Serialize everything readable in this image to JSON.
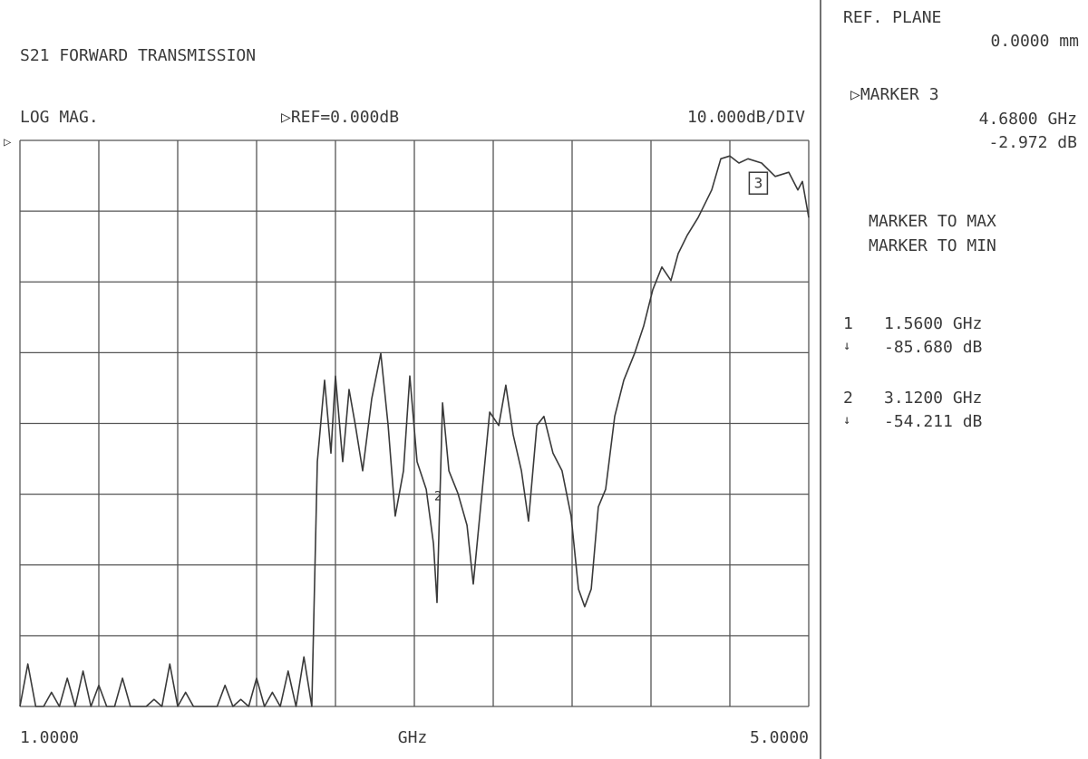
{
  "chart_data": {
    "type": "line",
    "title": "S21 FORWARD TRANSMISSION",
    "format_label": "LOG MAG.",
    "ref_label": "▷REF=0.000dB",
    "scale_label": "10.000dB/DIV",
    "xlabel": "GHz",
    "ref_marker": "▷",
    "xlim": [
      1,
      5
    ],
    "ylim": [
      -80,
      0
    ],
    "xticks": [
      {
        "value": 1,
        "label": "1.0000"
      },
      {
        "value": 5,
        "label": "5.0000"
      }
    ],
    "xgrid": [
      1,
      1.4,
      1.8,
      2.2,
      2.6,
      3.0,
      3.4,
      3.8,
      4.2,
      4.6,
      5.0
    ],
    "ygrid": [
      0,
      -10,
      -20,
      -30,
      -40,
      -50,
      -60,
      -70,
      -80
    ],
    "grid": true,
    "x": [
      1.0,
      1.04,
      1.08,
      1.12,
      1.16,
      1.2,
      1.24,
      1.28,
      1.32,
      1.36,
      1.4,
      1.44,
      1.48,
      1.52,
      1.56,
      1.6,
      1.64,
      1.68,
      1.72,
      1.76,
      1.8,
      1.84,
      1.88,
      1.92,
      1.96,
      2.0,
      2.04,
      2.08,
      2.12,
      2.16,
      2.2,
      2.24,
      2.28,
      2.32,
      2.36,
      2.4,
      2.44,
      2.48,
      2.508,
      2.545,
      2.577,
      2.6,
      2.637,
      2.669,
      2.701,
      2.738,
      2.784,
      2.83,
      2.867,
      2.903,
      2.945,
      2.977,
      3.014,
      3.06,
      3.097,
      3.115,
      3.143,
      3.175,
      3.221,
      3.267,
      3.299,
      3.336,
      3.382,
      3.428,
      3.464,
      3.501,
      3.543,
      3.579,
      3.621,
      3.657,
      3.703,
      3.749,
      3.795,
      3.832,
      3.864,
      3.897,
      3.933,
      3.97,
      4.016,
      4.062,
      4.117,
      4.163,
      4.209,
      4.255,
      4.301,
      4.338,
      4.384,
      4.439,
      4.508,
      4.554,
      4.6,
      4.646,
      4.692,
      4.761,
      4.83,
      4.899,
      4.945,
      4.968,
      5.0
    ],
    "series": [
      {
        "name": "S21",
        "color": "#3a3a3a",
        "values": [
          -80,
          -74,
          -80,
          -80,
          -78,
          -80,
          -76,
          -80,
          -75,
          -80,
          -77,
          -80,
          -80,
          -76,
          -80,
          -80,
          -80,
          -79,
          -80,
          -74,
          -80,
          -78,
          -80,
          -80,
          -80,
          -80,
          -77,
          -80,
          -79,
          -80,
          -76,
          -80,
          -78,
          -80,
          -75,
          -80,
          -73,
          -80,
          -45.4,
          -33.9,
          -44.2,
          -33.3,
          -45.4,
          -35.2,
          -40.3,
          -46.7,
          -36.5,
          -30.1,
          -40.3,
          -53.1,
          -46.7,
          -33.3,
          -45.4,
          -49.3,
          -57.0,
          -65.3,
          -37.1,
          -46.7,
          -49.9,
          -54.4,
          -62.7,
          -51.8,
          -38.4,
          -40.3,
          -34.6,
          -41.6,
          -46.7,
          -53.8,
          -40.3,
          -39.0,
          -44.2,
          -46.7,
          -53.1,
          -63.4,
          -65.9,
          -63.4,
          -51.8,
          -49.3,
          -39.0,
          -33.9,
          -30.1,
          -26.2,
          -21.1,
          -17.9,
          -19.8,
          -16.0,
          -13.4,
          -10.9,
          -7.0,
          -2.6,
          -2.2,
          -3.2,
          -2.6,
          -3.2,
          -5.1,
          -4.5,
          -7.0,
          -5.8,
          -10.9
        ]
      }
    ],
    "markers": [
      {
        "label": "3",
        "x": 4.68,
        "y": -2.972
      },
      {
        "label": "2",
        "x": 3.12,
        "y": -54.211
      }
    ]
  },
  "panel": {
    "ref_plane": "REF. PLANE",
    "ref_plane_value": "0.0000 mm",
    "active_marker": "▷MARKER 3",
    "active_freq": "4.6800 GHz",
    "active_value": "-2.972 dB",
    "menu": [
      "MARKER TO MAX",
      "MARKER TO MIN"
    ],
    "marker_list": [
      {
        "number": "1",
        "arrow": "↓",
        "freq": "1.5600 GHz",
        "value": "-85.680 dB"
      },
      {
        "number": "2",
        "arrow": "↓",
        "freq": "3.1200 GHz",
        "value": "-54.211 dB"
      }
    ]
  }
}
